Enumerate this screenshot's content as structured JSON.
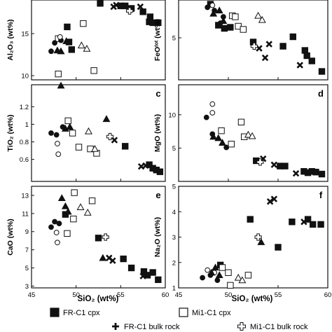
{
  "figure": {
    "legend": [
      {
        "label": "FR-C1 cpx",
        "marker": "filled-square"
      },
      {
        "label": "FR-C1 bulk rock",
        "marker": "filled-cross"
      },
      {
        "label": "Mi1-C1 cpx",
        "marker": "open-square"
      },
      {
        "label": "Mi1-C1 bulk rock",
        "marker": "open-cross"
      }
    ],
    "xaxis_label": "SiO₂ (wt%)"
  },
  "chart_data": [
    {
      "type": "scatter",
      "panel_letter": "",
      "ylabel": "Al₂O₃ (wt%)",
      "xlim": [
        45,
        60
      ],
      "ylim": [
        9.5,
        19
      ],
      "x_ticks": [],
      "y_ticks": [
        10,
        15
      ],
      "points": [
        {
          "x": 52.7,
          "y": 18.6,
          "m": "fsq"
        },
        {
          "x": 55.0,
          "y": 18.3,
          "m": "fsq"
        },
        {
          "x": 55.5,
          "y": 18.3,
          "m": "fsq"
        },
        {
          "x": 56.2,
          "y": 18.0,
          "m": "fsq"
        },
        {
          "x": 57.5,
          "y": 17.6,
          "m": "fsq"
        },
        {
          "x": 58.3,
          "y": 17.0,
          "m": "fsq"
        },
        {
          "x": 58.2,
          "y": 16.4,
          "m": "fsq"
        },
        {
          "x": 58.6,
          "y": 16.3,
          "m": "fsq"
        },
        {
          "x": 59.2,
          "y": 16.3,
          "m": "fsq"
        },
        {
          "x": 49.0,
          "y": 15.8,
          "m": "fsq"
        },
        {
          "x": 49.2,
          "y": 14.0,
          "m": "fsq"
        },
        {
          "x": 49.5,
          "y": 13.1,
          "m": "fsq"
        },
        {
          "x": 54.2,
          "y": 18.2,
          "m": "fx"
        },
        {
          "x": 54.5,
          "y": 18.4,
          "m": "fx"
        },
        {
          "x": 57.2,
          "y": 18.2,
          "m": "fx"
        },
        {
          "x": 56.0,
          "y": 17.7,
          "m": "ox"
        },
        {
          "x": 48.0,
          "y": 14.4,
          "m": "osq"
        },
        {
          "x": 50.8,
          "y": 16.2,
          "m": "osq"
        },
        {
          "x": 52.0,
          "y": 10.6,
          "m": "osq"
        },
        {
          "x": 48.0,
          "y": 10.2,
          "m": "osq"
        },
        {
          "x": 47.2,
          "y": 12.9,
          "m": "fc"
        },
        {
          "x": 47.6,
          "y": 13.9,
          "m": "fc"
        },
        {
          "x": 48.3,
          "y": 14.2,
          "m": "fc"
        },
        {
          "x": 48.2,
          "y": 14.6,
          "m": "oc"
        },
        {
          "x": 47.9,
          "y": 13.0,
          "m": "ft"
        },
        {
          "x": 48.3,
          "y": 12.9,
          "m": "ft"
        },
        {
          "x": 48.9,
          "y": 14.1,
          "m": "ft"
        },
        {
          "x": 50.6,
          "y": 13.6,
          "m": "ot"
        },
        {
          "x": 51.2,
          "y": 13.2,
          "m": "ot"
        }
      ]
    },
    {
      "type": "scatter",
      "panel_letter": "",
      "ylabel": "FeOᵗᵒᵗ (wt%)",
      "xlim": [
        45,
        60
      ],
      "ylim": [
        1,
        8.6
      ],
      "x_ticks": [],
      "y_ticks": [
        5
      ],
      "points": [
        {
          "x": 48.2,
          "y": 8.2,
          "m": "fsq"
        },
        {
          "x": 49.0,
          "y": 6.2,
          "m": "fsq"
        },
        {
          "x": 49.6,
          "y": 5.9,
          "m": "fsq"
        },
        {
          "x": 50.2,
          "y": 6.0,
          "m": "fsq"
        },
        {
          "x": 52.5,
          "y": 4.6,
          "m": "fsq"
        },
        {
          "x": 55.5,
          "y": 4.2,
          "m": "fsq"
        },
        {
          "x": 56.5,
          "y": 5.1,
          "m": "fsq"
        },
        {
          "x": 57.7,
          "y": 3.8,
          "m": "fsq"
        },
        {
          "x": 57.9,
          "y": 3.3,
          "m": "fsq"
        },
        {
          "x": 58.4,
          "y": 2.8,
          "m": "fsq"
        },
        {
          "x": 59.4,
          "y": 1.8,
          "m": "fsq"
        },
        {
          "x": 53.1,
          "y": 4.0,
          "m": "fx"
        },
        {
          "x": 53.7,
          "y": 3.1,
          "m": "fx"
        },
        {
          "x": 54.1,
          "y": 4.4,
          "m": "fx"
        },
        {
          "x": 57.2,
          "y": 2.4,
          "m": "fx"
        },
        {
          "x": 52.6,
          "y": 4.2,
          "m": "ox"
        },
        {
          "x": 50.4,
          "y": 7.1,
          "m": "osq"
        },
        {
          "x": 50.7,
          "y": 7.0,
          "m": "osq"
        },
        {
          "x": 51.0,
          "y": 6.1,
          "m": "osq"
        },
        {
          "x": 51.5,
          "y": 5.8,
          "m": "osq"
        },
        {
          "x": 47.9,
          "y": 7.9,
          "m": "fc"
        },
        {
          "x": 48.6,
          "y": 7.6,
          "m": "fc"
        },
        {
          "x": 49.2,
          "y": 6.4,
          "m": "fc"
        },
        {
          "x": 49.5,
          "y": 7.0,
          "m": "fc"
        },
        {
          "x": 48.4,
          "y": 8.1,
          "m": "oc"
        },
        {
          "x": 48.5,
          "y": 7.3,
          "m": "ft"
        },
        {
          "x": 49.1,
          "y": 7.6,
          "m": "ft"
        },
        {
          "x": 49.5,
          "y": 6.6,
          "m": "ft"
        },
        {
          "x": 53.0,
          "y": 7.1,
          "m": "ot"
        },
        {
          "x": 53.4,
          "y": 6.7,
          "m": "ot"
        }
      ]
    },
    {
      "type": "scatter",
      "panel_letter": "c",
      "ylabel": "TiO₂ (wt%)",
      "xlim": [
        45,
        60
      ],
      "ylim": [
        0.35,
        1.45
      ],
      "x_ticks": [],
      "y_ticks": [
        0.6,
        0.8,
        1.0,
        1.2
      ],
      "points": [
        {
          "x": 55.5,
          "y": 0.75,
          "m": "fsq"
        },
        {
          "x": 58.2,
          "y": 0.54,
          "m": "fsq"
        },
        {
          "x": 58.6,
          "y": 0.5,
          "m": "fsq"
        },
        {
          "x": 59.0,
          "y": 0.48,
          "m": "fsq"
        },
        {
          "x": 59.4,
          "y": 0.46,
          "m": "fsq"
        },
        {
          "x": 54.3,
          "y": 0.82,
          "m": "fx"
        },
        {
          "x": 57.3,
          "y": 0.52,
          "m": "fx"
        },
        {
          "x": 57.8,
          "y": 0.53,
          "m": "fx"
        },
        {
          "x": 53.8,
          "y": 0.86,
          "m": "ox"
        },
        {
          "x": 49.1,
          "y": 1.04,
          "m": "osq"
        },
        {
          "x": 49.6,
          "y": 0.9,
          "m": "osq"
        },
        {
          "x": 50.3,
          "y": 0.74,
          "m": "osq"
        },
        {
          "x": 52.3,
          "y": 0.67,
          "m": "osq"
        },
        {
          "x": 51.6,
          "y": 0.72,
          "m": "osq"
        },
        {
          "x": 47.2,
          "y": 0.9,
          "m": "fc"
        },
        {
          "x": 47.8,
          "y": 0.88,
          "m": "fc"
        },
        {
          "x": 48.5,
          "y": 0.97,
          "m": "fc"
        },
        {
          "x": 48.0,
          "y": 0.66,
          "m": "oc"
        },
        {
          "x": 47.9,
          "y": 0.78,
          "m": "oc"
        },
        {
          "x": 48.3,
          "y": 1.44,
          "m": "ft"
        },
        {
          "x": 48.8,
          "y": 0.95,
          "m": "ft"
        },
        {
          "x": 49.3,
          "y": 0.97,
          "m": "ft"
        },
        {
          "x": 53.4,
          "y": 1.06,
          "m": "ft"
        },
        {
          "x": 51.4,
          "y": 0.92,
          "m": "ot"
        },
        {
          "x": 52.1,
          "y": 0.72,
          "m": "ot"
        }
      ]
    },
    {
      "type": "scatter",
      "panel_letter": "d",
      "ylabel": "MgO (wt%)",
      "xlim": [
        45,
        60
      ],
      "ylim": [
        0,
        14.5
      ],
      "x_ticks": [],
      "y_ticks": [
        5,
        10
      ],
      "points": [
        {
          "x": 52.8,
          "y": 3.1,
          "m": "fsq"
        },
        {
          "x": 55.7,
          "y": 2.3,
          "m": "fsq"
        },
        {
          "x": 57.6,
          "y": 1.5,
          "m": "fsq"
        },
        {
          "x": 58.0,
          "y": 1.3,
          "m": "fsq"
        },
        {
          "x": 58.4,
          "y": 1.5,
          "m": "fsq"
        },
        {
          "x": 58.8,
          "y": 1.4,
          "m": "fsq"
        },
        {
          "x": 59.4,
          "y": 1.1,
          "m": "fsq"
        },
        {
          "x": 55.2,
          "y": 2.3,
          "m": "fsq"
        },
        {
          "x": 53.5,
          "y": 3.4,
          "m": "fx"
        },
        {
          "x": 54.6,
          "y": 2.5,
          "m": "fx"
        },
        {
          "x": 56.8,
          "y": 1.2,
          "m": "fx"
        },
        {
          "x": 53.2,
          "y": 2.9,
          "m": "ox"
        },
        {
          "x": 49.3,
          "y": 7.6,
          "m": "osq"
        },
        {
          "x": 50.3,
          "y": 5.6,
          "m": "osq"
        },
        {
          "x": 51.3,
          "y": 8.9,
          "m": "osq"
        },
        {
          "x": 51.6,
          "y": 6.7,
          "m": "osq"
        },
        {
          "x": 47.8,
          "y": 9.6,
          "m": "fc"
        },
        {
          "x": 48.4,
          "y": 7.1,
          "m": "fc"
        },
        {
          "x": 49.8,
          "y": 5.1,
          "m": "fc"
        },
        {
          "x": 48.4,
          "y": 11.6,
          "m": "oc"
        },
        {
          "x": 48.4,
          "y": 10.3,
          "m": "oc"
        },
        {
          "x": 48.5,
          "y": 6.7,
          "m": "ft"
        },
        {
          "x": 49.0,
          "y": 6.5,
          "m": "ft"
        },
        {
          "x": 49.4,
          "y": 5.8,
          "m": "ft"
        },
        {
          "x": 52.0,
          "y": 7.0,
          "m": "ot"
        },
        {
          "x": 52.4,
          "y": 6.8,
          "m": "ot"
        }
      ]
    },
    {
      "type": "scatter",
      "panel_letter": "e",
      "ylabel": "CaO (wt%)",
      "xlim": [
        45,
        60
      ],
      "ylim": [
        2.8,
        14
      ],
      "x_ticks": [
        45,
        50,
        55,
        60
      ],
      "y_ticks": [
        3,
        5,
        7,
        9,
        11,
        13
      ],
      "points": [
        {
          "x": 52.5,
          "y": 8.3,
          "m": "fsq"
        },
        {
          "x": 55.3,
          "y": 6.0,
          "m": "fsq"
        },
        {
          "x": 56.2,
          "y": 5.0,
          "m": "fsq"
        },
        {
          "x": 57.6,
          "y": 4.6,
          "m": "fsq"
        },
        {
          "x": 58.0,
          "y": 4.2,
          "m": "fsq"
        },
        {
          "x": 58.6,
          "y": 4.5,
          "m": "fsq"
        },
        {
          "x": 59.2,
          "y": 3.7,
          "m": "fsq"
        },
        {
          "x": 48.8,
          "y": 10.9,
          "m": "fsq"
        },
        {
          "x": 53.7,
          "y": 6.1,
          "m": "fx"
        },
        {
          "x": 54.1,
          "y": 5.8,
          "m": "fx"
        },
        {
          "x": 57.5,
          "y": 4.1,
          "m": "fx"
        },
        {
          "x": 53.3,
          "y": 8.4,
          "m": "ox"
        },
        {
          "x": 49.8,
          "y": 13.3,
          "m": "osq"
        },
        {
          "x": 51.8,
          "y": 12.4,
          "m": "osq"
        },
        {
          "x": 49.0,
          "y": 8.8,
          "m": "osq"
        },
        {
          "x": 49.7,
          "y": 10.4,
          "m": "osq"
        },
        {
          "x": 47.2,
          "y": 9.5,
          "m": "fc"
        },
        {
          "x": 47.6,
          "y": 10.1,
          "m": "fc"
        },
        {
          "x": 48.1,
          "y": 9.9,
          "m": "fc"
        },
        {
          "x": 47.9,
          "y": 7.8,
          "m": "oc"
        },
        {
          "x": 47.8,
          "y": 8.9,
          "m": "oc"
        },
        {
          "x": 48.4,
          "y": 12.7,
          "m": "ft"
        },
        {
          "x": 48.8,
          "y": 11.8,
          "m": "ft"
        },
        {
          "x": 49.1,
          "y": 11.2,
          "m": "ft"
        },
        {
          "x": 50.5,
          "y": 11.7,
          "m": "ot"
        },
        {
          "x": 51.3,
          "y": 11.1,
          "m": "ot"
        },
        {
          "x": 53.0,
          "y": 6.1,
          "m": "ft"
        }
      ]
    },
    {
      "type": "scatter",
      "panel_letter": "f",
      "ylabel": "Na₂O (wt%)",
      "xlim": [
        45,
        60
      ],
      "ylim": [
        1,
        5
      ],
      "x_ticks": [
        45,
        50,
        55,
        60
      ],
      "y_ticks": [
        1,
        2,
        3,
        4,
        5
      ],
      "points": [
        {
          "x": 52.2,
          "y": 3.7,
          "m": "fsq"
        },
        {
          "x": 55.0,
          "y": 2.6,
          "m": "fsq"
        },
        {
          "x": 56.4,
          "y": 3.6,
          "m": "fsq"
        },
        {
          "x": 58.0,
          "y": 3.7,
          "m": "fsq"
        },
        {
          "x": 58.5,
          "y": 3.5,
          "m": "fsq"
        },
        {
          "x": 59.3,
          "y": 3.5,
          "m": "fsq"
        },
        {
          "x": 49.2,
          "y": 1.9,
          "m": "fsq"
        },
        {
          "x": 54.2,
          "y": 4.4,
          "m": "fx"
        },
        {
          "x": 54.6,
          "y": 4.5,
          "m": "fx"
        },
        {
          "x": 57.6,
          "y": 3.6,
          "m": "fx"
        },
        {
          "x": 53.0,
          "y": 3.0,
          "m": "ox"
        },
        {
          "x": 49.4,
          "y": 1.8,
          "m": "osq"
        },
        {
          "x": 50.0,
          "y": 1.6,
          "m": "osq"
        },
        {
          "x": 50.2,
          "y": 1.1,
          "m": "osq"
        },
        {
          "x": 52.0,
          "y": 1.5,
          "m": "osq"
        },
        {
          "x": 47.4,
          "y": 1.4,
          "m": "fc"
        },
        {
          "x": 48.2,
          "y": 1.5,
          "m": "fc"
        },
        {
          "x": 48.9,
          "y": 1.3,
          "m": "fc"
        },
        {
          "x": 47.9,
          "y": 1.7,
          "m": "oc"
        },
        {
          "x": 48.6,
          "y": 1.6,
          "m": "oc"
        },
        {
          "x": 48.3,
          "y": 1.6,
          "m": "ft"
        },
        {
          "x": 48.7,
          "y": 1.8,
          "m": "ft"
        },
        {
          "x": 49.1,
          "y": 1.5,
          "m": "ft"
        },
        {
          "x": 53.3,
          "y": 2.8,
          "m": "ft"
        },
        {
          "x": 51.0,
          "y": 1.4,
          "m": "ot"
        },
        {
          "x": 51.4,
          "y": 1.3,
          "m": "ot"
        }
      ]
    }
  ]
}
